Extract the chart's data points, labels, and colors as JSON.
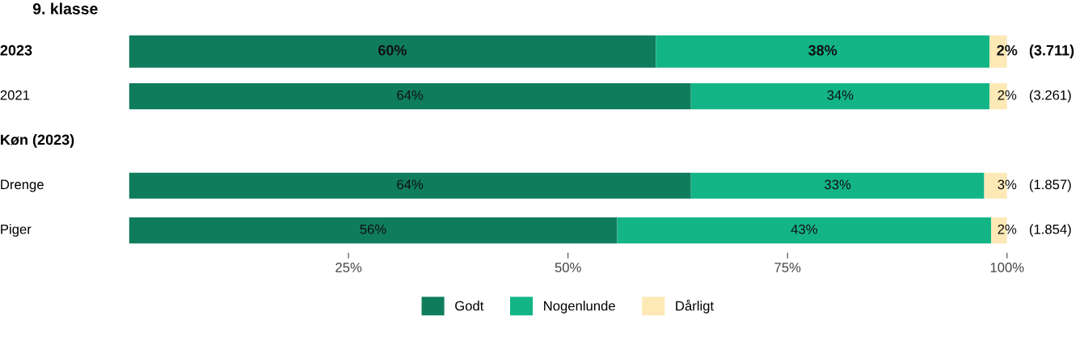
{
  "chart_data": {
    "type": "bar",
    "orientation": "horizontal",
    "stacked": true,
    "title": "9. klasse",
    "categories": [
      "2023",
      "2021",
      "Køn (2023)",
      "Drenge",
      "Piger"
    ],
    "series": [
      {
        "name": "Godt",
        "color": "#0f7d5c",
        "values": [
          60,
          64,
          null,
          64,
          55.6
        ],
        "value_labels": [
          "60%",
          "64%",
          null,
          "64%",
          "56%"
        ]
      },
      {
        "name": "Nogenlunde",
        "color": "#13b587",
        "values": [
          38,
          34,
          null,
          33.4,
          42.6
        ],
        "value_labels": [
          "38%",
          "34%",
          null,
          "33%",
          "43%"
        ]
      },
      {
        "name": "Dårligt",
        "color": "#fde9b5",
        "values": [
          2,
          2,
          null,
          2.6,
          1.8
        ],
        "value_labels": [
          "2%",
          "2%",
          null,
          "3%",
          "2%"
        ]
      }
    ],
    "annotations": [
      "(3.711)",
      "(3.261)",
      "(1.857)",
      "(1.854)"
    ],
    "xlim": [
      0,
      100
    ],
    "xticks": [
      {
        "value": 25,
        "label": "25%"
      },
      {
        "value": 50,
        "label": "50%"
      },
      {
        "value": 75,
        "label": "75%"
      },
      {
        "value": 100,
        "label": "100%"
      }
    ],
    "grid": false,
    "legend": "bottom"
  }
}
